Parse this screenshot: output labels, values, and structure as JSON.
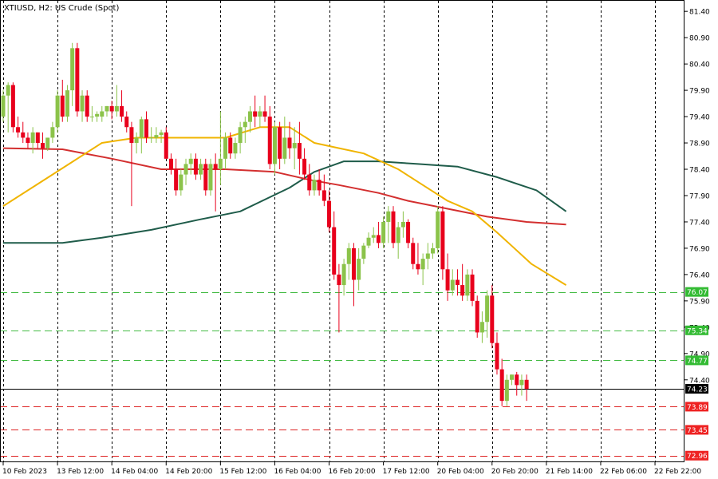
{
  "chart_title": "XTIUSD, H2:  US Crude (Spot)",
  "colors": {
    "bull": "#8bc34a",
    "bear": "#e8001c",
    "ema_fast": "#f0b400",
    "ema_mid": "#d32f2f",
    "ema_slow": "#1f5c4a",
    "green_level": "#44bb44",
    "red_level": "#dd2222",
    "current_line": "#000000",
    "grid": "#000000"
  },
  "chart_data": {
    "type": "candlestick",
    "symbol": "XTIUSD",
    "timeframe": "H2",
    "ylim": [
      72.85,
      81.6
    ],
    "x_range": [
      0,
      137
    ],
    "y_ticks": [
      "81.40",
      "80.90",
      "80.40",
      "79.90",
      "79.40",
      "78.90",
      "78.40",
      "77.90",
      "77.40",
      "76.90",
      "76.40",
      "75.90",
      "75.40",
      "74.90",
      "74.40"
    ],
    "x_ticks": [
      {
        "i": 0,
        "label": "10 Feb 2023"
      },
      {
        "i": 11,
        "label": "13 Feb 12:00"
      },
      {
        "i": 22,
        "label": "14 Feb 04:00"
      },
      {
        "i": 33,
        "label": "14 Feb 20:00"
      },
      {
        "i": 44,
        "label": "15 Feb 12:00"
      },
      {
        "i": 55,
        "label": "16 Feb 04:00"
      },
      {
        "i": 66,
        "label": "16 Feb 20:00"
      },
      {
        "i": 77,
        "label": "17 Feb 12:00"
      },
      {
        "i": 88,
        "label": "20 Feb 04:00"
      },
      {
        "i": 99,
        "label": "20 Feb 20:00"
      },
      {
        "i": 110,
        "label": "21 Feb 14:00"
      },
      {
        "i": 121,
        "label": "22 Feb 06:00"
      },
      {
        "i": 132,
        "label": "22 Feb 22:00"
      }
    ],
    "current_price": "74.23",
    "green_levels": [
      "76.07",
      "75.34",
      "74.77"
    ],
    "red_levels": [
      "73.89",
      "73.45",
      "72.96"
    ],
    "candles": [
      [
        79.4,
        79.9,
        79.3,
        79.8
      ],
      [
        79.8,
        80.05,
        79.1,
        80.0
      ],
      [
        80.0,
        80.05,
        79.1,
        79.2
      ],
      [
        79.2,
        79.4,
        79.0,
        79.1
      ],
      [
        79.1,
        79.3,
        78.9,
        79.0
      ],
      [
        79.0,
        79.1,
        78.8,
        78.9
      ],
      [
        78.9,
        79.2,
        78.7,
        79.1
      ],
      [
        79.1,
        79.1,
        78.8,
        78.9
      ],
      [
        78.9,
        79.1,
        78.6,
        78.8
      ],
      [
        78.8,
        79.0,
        78.75,
        79.0
      ],
      [
        79.0,
        79.3,
        78.9,
        79.2
      ],
      [
        79.2,
        79.9,
        79.1,
        79.8
      ],
      [
        79.8,
        80.1,
        79.3,
        79.4
      ],
      [
        79.4,
        80.0,
        79.3,
        79.9
      ],
      [
        79.9,
        80.8,
        79.6,
        80.7
      ],
      [
        80.7,
        80.8,
        79.4,
        79.5
      ],
      [
        79.5,
        79.9,
        79.3,
        79.8
      ],
      [
        79.8,
        79.9,
        79.3,
        79.4
      ],
      [
        79.4,
        79.6,
        79.3,
        79.4
      ],
      [
        79.4,
        79.5,
        79.3,
        79.45
      ],
      [
        79.4,
        79.6,
        79.3,
        79.5
      ],
      [
        79.5,
        79.6,
        79.4,
        79.6
      ],
      [
        79.6,
        79.7,
        79.35,
        79.5
      ],
      [
        79.5,
        80.0,
        79.4,
        79.6
      ],
      [
        79.6,
        79.9,
        79.3,
        79.4
      ],
      [
        79.4,
        79.5,
        79.1,
        79.2
      ],
      [
        79.2,
        79.3,
        77.7,
        78.9
      ],
      [
        78.9,
        79.1,
        78.7,
        79.0
      ],
      [
        79.0,
        79.4,
        78.7,
        79.35
      ],
      [
        79.35,
        79.5,
        78.9,
        79.0
      ],
      [
        79.0,
        79.2,
        78.9,
        79.0
      ],
      [
        79.0,
        79.2,
        78.9,
        79.05
      ],
      [
        79.05,
        79.15,
        78.9,
        79.1
      ],
      [
        79.1,
        79.2,
        78.6,
        78.6
      ],
      [
        78.6,
        78.7,
        78.3,
        78.4
      ],
      [
        78.4,
        78.6,
        77.9,
        78.0
      ],
      [
        78.0,
        78.4,
        77.9,
        78.3
      ],
      [
        78.3,
        78.6,
        78.1,
        78.5
      ],
      [
        78.5,
        78.7,
        78.3,
        78.6
      ],
      [
        78.6,
        78.7,
        78.2,
        78.3
      ],
      [
        78.3,
        78.6,
        78.2,
        78.5
      ],
      [
        78.5,
        78.6,
        77.9,
        78.0
      ],
      [
        78.0,
        78.6,
        77.9,
        78.5
      ],
      [
        78.5,
        78.7,
        77.6,
        78.4
      ],
      [
        78.4,
        79.5,
        78.1,
        78.6
      ],
      [
        78.6,
        79.1,
        78.4,
        79.0
      ],
      [
        79.0,
        79.1,
        78.6,
        78.7
      ],
      [
        78.7,
        79.0,
        78.6,
        78.9
      ],
      [
        78.9,
        79.3,
        78.7,
        79.2
      ],
      [
        79.2,
        79.4,
        78.9,
        79.3
      ],
      [
        79.3,
        79.6,
        79.1,
        79.5
      ],
      [
        79.5,
        79.8,
        79.2,
        79.4
      ],
      [
        79.4,
        79.6,
        79.2,
        79.5
      ],
      [
        79.5,
        79.8,
        79.3,
        79.4
      ],
      [
        79.4,
        79.6,
        78.4,
        78.5
      ],
      [
        78.5,
        79.3,
        78.3,
        79.2
      ],
      [
        79.2,
        79.3,
        78.4,
        78.6
      ],
      [
        78.6,
        79.4,
        78.5,
        79.0
      ],
      [
        79.0,
        79.3,
        78.6,
        78.8
      ],
      [
        78.8,
        79.2,
        78.4,
        78.9
      ],
      [
        78.9,
        79.3,
        78.3,
        78.6
      ],
      [
        78.6,
        78.8,
        78.2,
        78.3
      ],
      [
        78.3,
        78.5,
        77.9,
        78.0
      ],
      [
        78.0,
        78.3,
        77.9,
        78.2
      ],
      [
        78.2,
        78.4,
        77.9,
        78.0
      ],
      [
        78.0,
        78.3,
        77.7,
        77.8
      ],
      [
        77.8,
        78.0,
        77.2,
        77.3
      ],
      [
        77.3,
        77.6,
        76.3,
        76.4
      ],
      [
        76.4,
        76.6,
        75.3,
        76.2
      ],
      [
        76.2,
        76.7,
        76.0,
        76.6
      ],
      [
        76.6,
        77.0,
        76.3,
        76.9
      ],
      [
        76.9,
        77.0,
        75.8,
        76.3
      ],
      [
        76.3,
        76.9,
        76.1,
        76.7
      ],
      [
        76.7,
        77.0,
        76.6,
        76.95
      ],
      [
        76.95,
        77.2,
        76.9,
        77.1
      ],
      [
        77.1,
        77.3,
        77.0,
        77.15
      ],
      [
        77.15,
        77.4,
        76.9,
        77.0
      ],
      [
        77.0,
        77.5,
        76.9,
        77.4
      ],
      [
        77.4,
        77.7,
        77.0,
        77.6
      ],
      [
        77.6,
        77.7,
        76.9,
        77.0
      ],
      [
        77.0,
        77.4,
        76.7,
        77.3
      ],
      [
        77.3,
        77.6,
        77.1,
        77.4
      ],
      [
        77.4,
        77.45,
        76.9,
        77.0
      ],
      [
        77.0,
        77.1,
        76.5,
        76.6
      ],
      [
        76.6,
        77.0,
        76.4,
        76.5
      ],
      [
        76.5,
        76.8,
        76.2,
        76.7
      ],
      [
        76.7,
        77.0,
        76.5,
        76.8
      ],
      [
        76.8,
        77.0,
        76.7,
        76.9
      ],
      [
        76.9,
        77.7,
        76.8,
        77.6
      ],
      [
        77.6,
        77.7,
        76.3,
        76.5
      ],
      [
        76.5,
        76.8,
        75.9,
        76.1
      ],
      [
        76.1,
        76.5,
        76.0,
        76.3
      ],
      [
        76.3,
        76.5,
        76.0,
        76.2
      ],
      [
        76.2,
        76.6,
        75.9,
        76.0
      ],
      [
        76.0,
        76.5,
        75.9,
        76.4
      ],
      [
        76.4,
        76.5,
        75.8,
        75.9
      ],
      [
        75.9,
        76.0,
        75.2,
        75.3
      ],
      [
        75.3,
        75.7,
        75.1,
        75.5
      ],
      [
        75.5,
        76.1,
        75.2,
        76.0
      ],
      [
        76.0,
        76.2,
        75.0,
        75.1
      ],
      [
        75.1,
        75.3,
        74.5,
        74.6
      ],
      [
        74.6,
        74.8,
        73.9,
        74.0
      ],
      [
        74.0,
        74.5,
        73.9,
        74.4
      ],
      [
        74.4,
        74.5,
        74.3,
        74.5
      ],
      [
        74.5,
        74.55,
        74.1,
        74.3
      ],
      [
        74.3,
        74.5,
        74.1,
        74.4
      ],
      [
        74.4,
        74.5,
        74.0,
        74.23
      ]
    ],
    "ema_fast": [
      [
        0,
        77.7
      ],
      [
        10,
        78.3
      ],
      [
        20,
        78.9
      ],
      [
        27,
        79.0
      ],
      [
        35,
        79.0
      ],
      [
        45,
        79.0
      ],
      [
        52,
        79.2
      ],
      [
        58,
        79.2
      ],
      [
        63,
        78.9
      ],
      [
        68,
        78.8
      ],
      [
        73,
        78.7
      ],
      [
        80,
        78.4
      ],
      [
        85,
        78.1
      ],
      [
        90,
        77.8
      ],
      [
        95,
        77.6
      ],
      [
        100,
        77.2
      ],
      [
        107,
        76.6
      ],
      [
        114,
        76.2
      ]
    ],
    "ema_mid": [
      [
        0,
        78.8
      ],
      [
        12,
        78.78
      ],
      [
        22,
        78.6
      ],
      [
        32,
        78.4
      ],
      [
        45,
        78.4
      ],
      [
        55,
        78.35
      ],
      [
        62,
        78.2
      ],
      [
        68,
        78.1
      ],
      [
        76,
        77.95
      ],
      [
        82,
        77.8
      ],
      [
        90,
        77.65
      ],
      [
        98,
        77.5
      ],
      [
        106,
        77.4
      ],
      [
        114,
        77.35
      ]
    ],
    "ema_slow": [
      [
        0,
        77.0
      ],
      [
        12,
        77.0
      ],
      [
        20,
        77.1
      ],
      [
        30,
        77.25
      ],
      [
        40,
        77.45
      ],
      [
        48,
        77.6
      ],
      [
        58,
        78.05
      ],
      [
        63,
        78.35
      ],
      [
        69,
        78.55
      ],
      [
        76,
        78.55
      ],
      [
        84,
        78.5
      ],
      [
        92,
        78.45
      ],
      [
        100,
        78.25
      ],
      [
        108,
        78.0
      ],
      [
        114,
        77.6
      ]
    ]
  }
}
